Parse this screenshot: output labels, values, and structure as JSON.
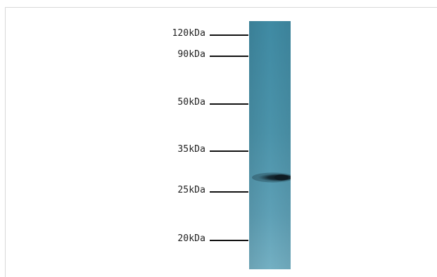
{
  "blot": {
    "markers": [
      {
        "label": "120kDa",
        "kda": 120
      },
      {
        "label": "90kDa",
        "kda": 90
      },
      {
        "label": "50kDa",
        "kda": 50
      },
      {
        "label": "35kDa",
        "kda": 35
      },
      {
        "label": "25kDa",
        "kda": 25
      },
      {
        "label": "20kDa",
        "kda": 20
      }
    ],
    "band": {
      "kda": 28
    },
    "colors": {
      "lane_base": "#4b93aa",
      "lane_light": "#6aa9bd",
      "band": "#0e1b22",
      "tick": "#111111",
      "label": "#222222"
    }
  }
}
